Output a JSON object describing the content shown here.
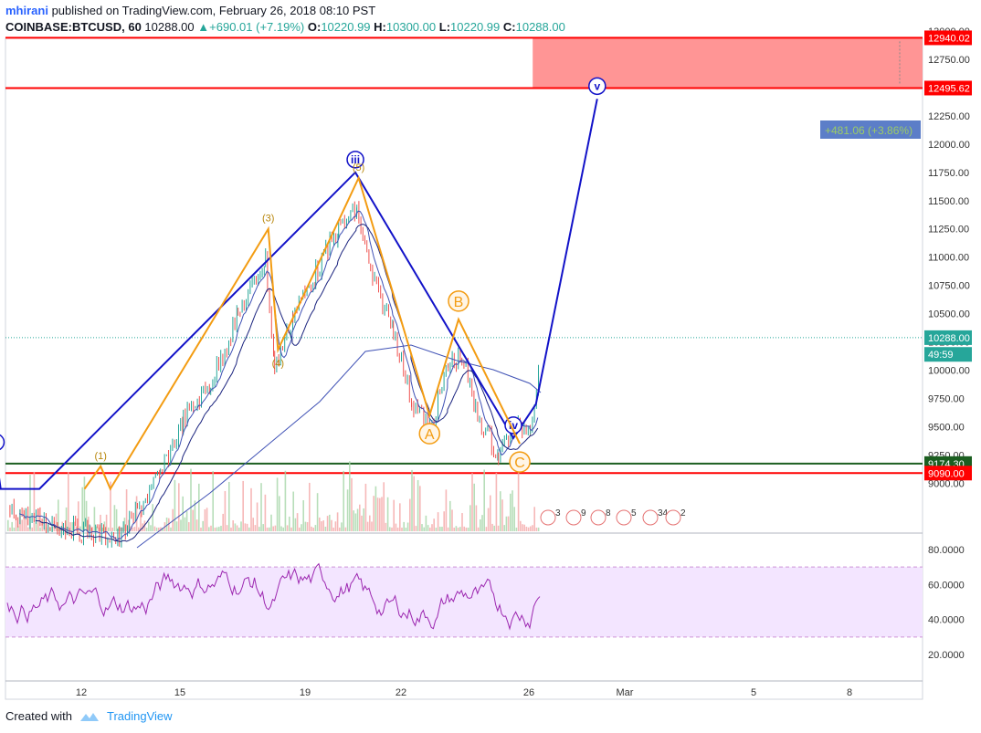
{
  "header": {
    "author": "mhirani",
    "published_text": " published on TradingView.com, February 26, 2018 08:10 PST",
    "symbol": "COINBASE:BTCUSD, 60",
    "last": "10288.00",
    "change": "▲+690.01 (+7.19%)",
    "o_label": "O:",
    "o": "10220.99",
    "h_label": "H:",
    "h": "10300.00",
    "l_label": "L:",
    "l": "10220.99",
    "c_label": "C:",
    "c": "10288.00"
  },
  "footer": {
    "created_with": "Created with",
    "brand": "TradingView"
  },
  "colors": {
    "candle_up": "#26a69a",
    "candle_down": "#ef5350",
    "impulse": "#1212c8",
    "minor": "#f39c12",
    "red_line": "#ff0000",
    "green_line": "#1b5e20",
    "zone_fill": "#ff8a8a",
    "rsi_band": "#f3e5ff",
    "rsi_line": "#9c27b0",
    "ma1": "#1a237e",
    "ma2": "#3f51b5"
  },
  "chart_data": [
    {
      "type": "line",
      "title": "COINBASE:BTCUSD, 60",
      "ylim": [
        9050,
        13050
      ],
      "y_ticks": [
        "13000.00",
        "12750.00",
        "12500.00",
        "12250.00",
        "12000.00",
        "11750.00",
        "11500.00",
        "11250.00",
        "11000.00",
        "10750.00",
        "10500.00",
        "10250.00",
        "10000.00",
        "9750.00",
        "9500.00",
        "9250.00",
        "9000.00"
      ],
      "x_ticks": [
        "12",
        "15",
        "19",
        "22",
        "26",
        "Mar",
        "5",
        "8"
      ],
      "price_labels": [
        {
          "text": "12940.02",
          "value": 12940.02,
          "color": "#ff0000"
        },
        {
          "text": "12495.62",
          "value": 12495.62,
          "color": "#ff0000"
        },
        {
          "text": "10288.00",
          "value": 10288.0,
          "color": "#26a69a"
        },
        {
          "text": "49:59",
          "value": 10140,
          "color": "#26a69a"
        },
        {
          "text": "9174.30",
          "value": 9174.3,
          "color": "#1b5e20"
        },
        {
          "text": "9090.00",
          "value": 9090.0,
          "color": "#ff0000"
        }
      ],
      "projection_label": "+481.06 (+3.86%)",
      "horizontal_lines": [
        {
          "value": 12940.02,
          "color": "#ff0000"
        },
        {
          "value": 12495.62,
          "color": "#ff0000"
        },
        {
          "value": 9174.3,
          "color": "#1b5e20"
        },
        {
          "value": 9090.0,
          "color": "#ff0000"
        }
      ],
      "target_zone": {
        "from_day": 26.0,
        "y_low": 12495.62,
        "y_high": 12940.02
      },
      "impulse_wave": {
        "labels": [
          "i",
          "iii",
          "iv",
          "v"
        ],
        "points": [
          {
            "day": 9.35,
            "price": 9250
          },
          {
            "day": 9.5,
            "price": 8950
          },
          {
            "day": 10.7,
            "price": 8950
          },
          {
            "day": 20.5,
            "price": 11750
          },
          {
            "day": 25.4,
            "price": 9400
          },
          {
            "day": 26.1,
            "price": 9700
          },
          {
            "day": 28.0,
            "price": 12400
          }
        ],
        "label_points": [
          {
            "text": "i",
            "day": 9.35,
            "price": 9250
          },
          {
            "text": "iii",
            "day": 20.5,
            "price": 11750
          },
          {
            "text": "iv",
            "day": 25.4,
            "price": 9400
          },
          {
            "text": "v",
            "day": 28.0,
            "price": 12400
          }
        ]
      },
      "minor_wave": {
        "points": [
          {
            "day": 12.1,
            "price": 8950
          },
          {
            "day": 12.6,
            "price": 9150
          },
          {
            "day": 12.9,
            "price": 8950
          },
          {
            "day": 17.8,
            "price": 11250
          },
          {
            "day": 18.1,
            "price": 10180
          },
          {
            "day": 20.6,
            "price": 11700
          },
          {
            "day": 22.8,
            "price": 9600
          },
          {
            "day": 23.7,
            "price": 10450
          },
          {
            "day": 25.6,
            "price": 9350
          }
        ],
        "labels": [
          {
            "text": "(1)",
            "day": 12.6,
            "price": 9150,
            "style": "paren"
          },
          {
            "text": "(3)",
            "day": 17.8,
            "price": 11250,
            "style": "paren"
          },
          {
            "text": "(4)",
            "day": 18.1,
            "price": 10180,
            "style": "paren"
          },
          {
            "text": "(5)",
            "day": 20.6,
            "price": 11700,
            "style": "paren"
          },
          {
            "text": "A",
            "day": 22.8,
            "price": 9600,
            "style": "circle"
          },
          {
            "text": "B",
            "day": 23.7,
            "price": 10450,
            "style": "circle"
          },
          {
            "text": "C",
            "day": 25.6,
            "price": 9350,
            "style": "circle"
          }
        ]
      },
      "event_badges": [
        "3",
        "9",
        "8",
        "5",
        "34",
        "2"
      ]
    },
    {
      "type": "line",
      "title": "RSI",
      "ylim": [
        10,
        90
      ],
      "y_ticks": [
        "80.0000",
        "60.0000",
        "40.0000",
        "20.0000"
      ],
      "band": [
        30,
        70
      ]
    }
  ]
}
